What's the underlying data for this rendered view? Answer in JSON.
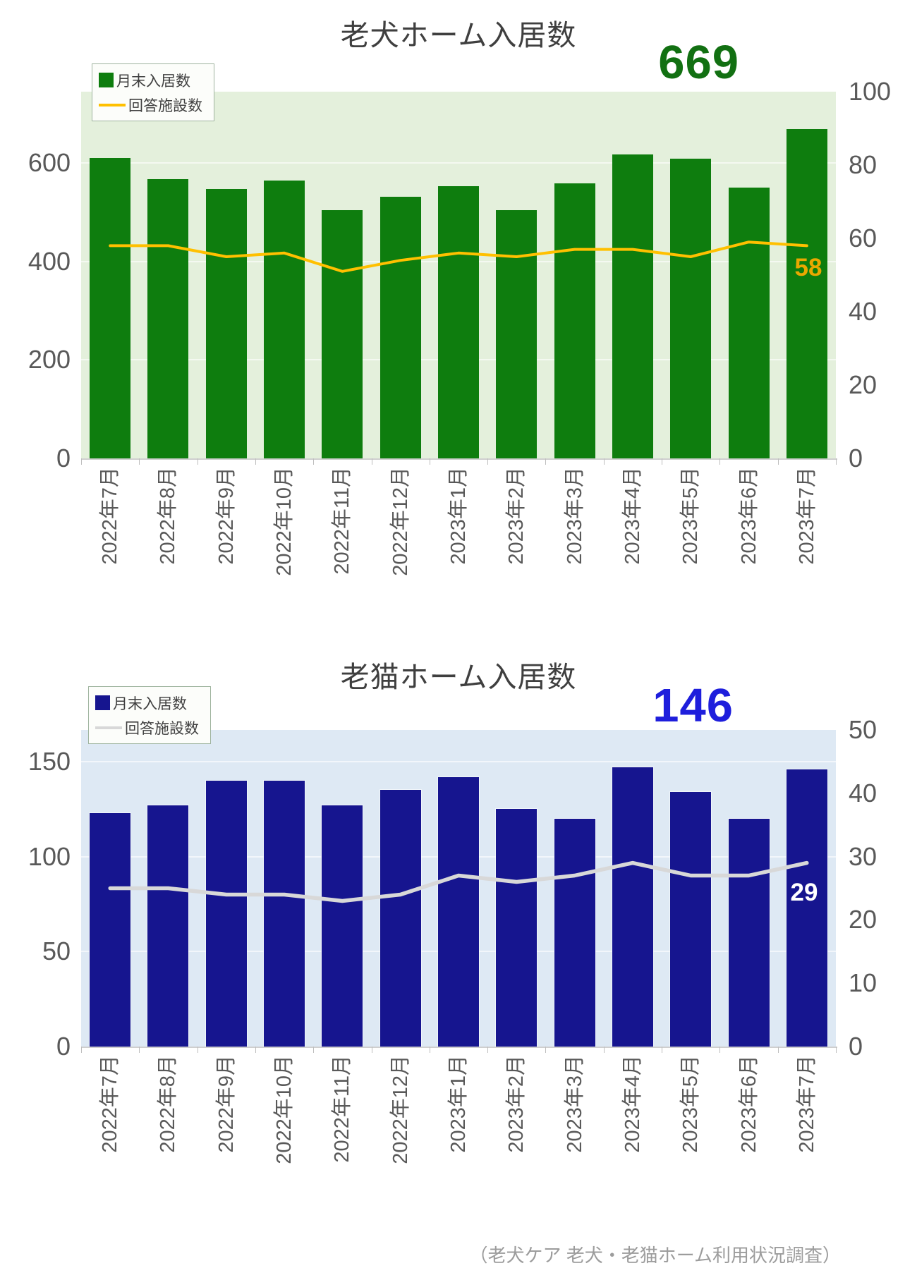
{
  "page": {
    "footer": "（老犬ケア 老犬・老猫ホーム利用状況調査）"
  },
  "charts": [
    {
      "title": "老犬ホーム入居数",
      "legend": [
        {
          "label": "月末入居数",
          "marker": "square-icon"
        },
        {
          "label": "回答施設数",
          "marker": "line-icon"
        }
      ],
      "big_number": "669",
      "line_end_label": "58",
      "colors": {
        "bar": "#0E7D0E",
        "line": "#FFC000",
        "plot_bg": "#E4F0DC",
        "big_number": "#127012",
        "line_label": "#EAA800"
      }
    },
    {
      "title": "老猫ホーム入居数",
      "legend": [
        {
          "label": "月末入居数",
          "marker": "square-icon"
        },
        {
          "label": "回答施設数",
          "marker": "line-icon"
        }
      ],
      "big_number": "146",
      "line_end_label": "29",
      "colors": {
        "bar": "#16158F",
        "line": "#D8D8D8",
        "plot_bg": "#DEE9F4",
        "big_number": "#1E1EDC",
        "line_label": "#FFFFFF"
      }
    }
  ],
  "chart_data": [
    {
      "type": "bar",
      "title": "老犬ホーム入居数",
      "categories": [
        "2022年7月",
        "2022年8月",
        "2022年9月",
        "2022年10月",
        "2022年11月",
        "2022年12月",
        "2023年1月",
        "2023年2月",
        "2023年3月",
        "2023年4月",
        "2023年5月",
        "2023年6月",
        "2023年7月"
      ],
      "series": [
        {
          "name": "月末入居数",
          "kind": "bar",
          "axis": "left",
          "values": [
            610,
            568,
            547,
            564,
            505,
            531,
            553,
            505,
            559,
            618,
            609,
            550,
            669
          ]
        },
        {
          "name": "回答施設数",
          "kind": "line",
          "axis": "right",
          "values": [
            58,
            58,
            55,
            56,
            51,
            54,
            56,
            55,
            57,
            57,
            55,
            59,
            58
          ]
        }
      ],
      "left_axis": {
        "ticks": [
          0,
          200,
          400,
          600
        ],
        "range": [
          0,
          745
        ]
      },
      "right_axis": {
        "ticks": [
          0,
          20,
          40,
          60,
          80,
          100
        ],
        "range": [
          0,
          100
        ]
      },
      "grid": true,
      "legend_position": "top-left",
      "annotations": [
        {
          "text": "669",
          "target": "latest-bar"
        },
        {
          "text": "58",
          "target": "latest-line-point"
        }
      ]
    },
    {
      "type": "bar",
      "title": "老猫ホーム入居数",
      "categories": [
        "2022年7月",
        "2022年8月",
        "2022年9月",
        "2022年10月",
        "2022年11月",
        "2022年12月",
        "2023年1月",
        "2023年2月",
        "2023年3月",
        "2023年4月",
        "2023年5月",
        "2023年6月",
        "2023年7月"
      ],
      "series": [
        {
          "name": "月末入居数",
          "kind": "bar",
          "axis": "left",
          "values": [
            123,
            127,
            140,
            140,
            127,
            135,
            142,
            125,
            120,
            147,
            134,
            120,
            146
          ]
        },
        {
          "name": "回答施設数",
          "kind": "line",
          "axis": "right",
          "values": [
            25,
            25,
            24,
            24,
            23,
            24,
            27,
            26,
            27,
            29,
            27,
            27,
            29
          ]
        }
      ],
      "left_axis": {
        "ticks": [
          0,
          50,
          100,
          150
        ],
        "range": [
          0,
          166.7
        ]
      },
      "right_axis": {
        "ticks": [
          0,
          10,
          20,
          30,
          40,
          50
        ],
        "range": [
          0,
          50
        ]
      },
      "grid": true,
      "legend_position": "top-left",
      "annotations": [
        {
          "text": "146",
          "target": "latest-bar"
        },
        {
          "text": "29",
          "target": "latest-line-point"
        }
      ]
    }
  ]
}
